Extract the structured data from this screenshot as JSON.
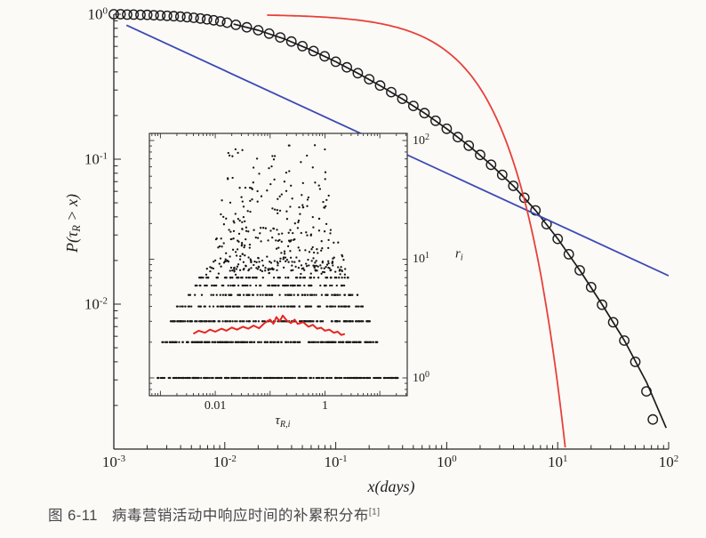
{
  "page": {
    "background": "#fbfaf7"
  },
  "caption": {
    "label": "图 6-11",
    "text": "病毒营销活动中响应时间的补累积分布",
    "ref": "[1]"
  },
  "chart_data": [
    {
      "name": "main-ccdf-plot",
      "type": "scatter",
      "xscale": "log",
      "yscale": "log",
      "xlabel": "x(days)",
      "ylabel": "P(τ_{R} > x)",
      "xlim": [
        0.001,
        100
      ],
      "ylim": [
        0.001,
        1
      ],
      "axis_color": "#242424",
      "xticks": [
        {
          "v": 0.001,
          "label": "10^{-3}"
        },
        {
          "v": 0.01,
          "label": "10^{-2}"
        },
        {
          "v": 0.1,
          "label": "10^{-1}"
        },
        {
          "v": 1,
          "label": "10^{0}"
        },
        {
          "v": 10,
          "label": "10^{1}"
        },
        {
          "v": 100,
          "label": "10^{2}"
        }
      ],
      "yticks": [
        {
          "v": 1,
          "label": "10^{0}"
        },
        {
          "v": 0.1,
          "label": "10^{-1}"
        },
        {
          "v": 0.01,
          "label": "10^{-2}"
        }
      ],
      "series": [
        {
          "name": "empirical-ccdf",
          "type": "scatter",
          "marker": "open-circle",
          "marker_radius": 5.2,
          "color": "#1b1b1b",
          "points": [
            [
              0.001,
              1.0
            ],
            [
              0.00115,
              1.0
            ],
            [
              0.00132,
              0.995
            ],
            [
              0.00151,
              0.995
            ],
            [
              0.00174,
              0.99
            ],
            [
              0.002,
              0.99
            ],
            [
              0.00229,
              0.985
            ],
            [
              0.00263,
              0.98
            ],
            [
              0.00302,
              0.975
            ],
            [
              0.00347,
              0.97
            ],
            [
              0.00398,
              0.962
            ],
            [
              0.00457,
              0.955
            ],
            [
              0.00525,
              0.945
            ],
            [
              0.00603,
              0.935
            ],
            [
              0.00692,
              0.922
            ],
            [
              0.00794,
              0.908
            ],
            [
              0.00912,
              0.893
            ],
            [
              0.0105,
              0.875
            ],
            [
              0.0126,
              0.845
            ],
            [
              0.0158,
              0.812
            ],
            [
              0.02,
              0.775
            ],
            [
              0.0251,
              0.735
            ],
            [
              0.0316,
              0.692
            ],
            [
              0.0398,
              0.648
            ],
            [
              0.0501,
              0.602
            ],
            [
              0.0631,
              0.557
            ],
            [
              0.0794,
              0.513
            ],
            [
              0.1,
              0.47
            ],
            [
              0.126,
              0.43
            ],
            [
              0.158,
              0.392
            ],
            [
              0.2,
              0.356
            ],
            [
              0.251,
              0.322
            ],
            [
              0.316,
              0.29
            ],
            [
              0.398,
              0.261
            ],
            [
              0.501,
              0.233
            ],
            [
              0.631,
              0.208
            ],
            [
              0.794,
              0.184
            ],
            [
              1.0,
              0.162
            ],
            [
              1.26,
              0.142
            ],
            [
              1.58,
              0.124
            ],
            [
              2.0,
              0.107
            ],
            [
              2.51,
              0.0915
            ],
            [
              3.16,
              0.078
            ],
            [
              3.98,
              0.0655
            ],
            [
              5.01,
              0.0542
            ],
            [
              6.31,
              0.0443
            ],
            [
              7.94,
              0.0356
            ],
            [
              10.0,
              0.0282
            ],
            [
              12.6,
              0.0221
            ],
            [
              15.8,
              0.0171
            ],
            [
              20.0,
              0.0131
            ],
            [
              25.1,
              0.0099
            ],
            [
              31.6,
              0.0075
            ],
            [
              39.8,
              0.0056
            ],
            [
              50.1,
              0.004
            ],
            [
              63.1,
              0.0025
            ],
            [
              72,
              0.0016
            ]
          ]
        },
        {
          "name": "lognormal-fit",
          "type": "line",
          "color": "#1b1b1b",
          "width": 1.7,
          "points": [
            [
              0.012,
              0.855
            ],
            [
              0.02,
              0.775
            ],
            [
              0.035,
              0.672
            ],
            [
              0.06,
              0.566
            ],
            [
              0.1,
              0.47
            ],
            [
              0.16,
              0.39
            ],
            [
              0.25,
              0.322
            ],
            [
              0.4,
              0.26
            ],
            [
              0.63,
              0.208
            ],
            [
              1.0,
              0.162
            ],
            [
              1.6,
              0.123
            ],
            [
              2.5,
              0.0917
            ],
            [
              4.0,
              0.0653
            ],
            [
              6.3,
              0.0444
            ],
            [
              10,
              0.0283
            ],
            [
              16,
              0.0169
            ],
            [
              25,
              0.01
            ],
            [
              40,
              0.0056
            ],
            [
              63,
              0.0029
            ],
            [
              95,
              0.0014
            ]
          ]
        },
        {
          "name": "power-law",
          "type": "line",
          "color": "#3c49b5",
          "width": 1.8,
          "points": [
            [
              0.0013,
              0.84
            ],
            [
              100,
              0.0157
            ]
          ]
        },
        {
          "name": "exponential",
          "type": "line",
          "color": "#e8403a",
          "width": 1.8,
          "formula": "exp",
          "tau": 1.7,
          "xrange": [
            0.024,
            11.7
          ]
        }
      ]
    },
    {
      "name": "inset-response-scatter",
      "type": "scatter",
      "xscale": "log",
      "yscale": "log",
      "xlabel": "τ_{R,i}",
      "ylabel_right": "r_{i}",
      "xlim": [
        0.00063,
        31.6
      ],
      "ylim": [
        0.708,
        114.8
      ],
      "frame_color": "#333333",
      "dot_color": "#161616",
      "seed": 42,
      "xticks": [
        {
          "v": 0.01,
          "label": "0.01"
        },
        {
          "v": 1,
          "label": "1"
        }
      ],
      "yticks": [
        {
          "v": 1,
          "label": "10^{0}"
        },
        {
          "v": 10,
          "label": "10^{1}"
        },
        {
          "v": 100,
          "label": "10^{2}"
        }
      ],
      "bands": [
        {
          "r": 1,
          "count": 300,
          "xmin": 0.0008,
          "xmax": 22
        },
        {
          "r": 2,
          "count": 230,
          "xmin": 0.001,
          "xmax": 9
        },
        {
          "r": 3,
          "count": 170,
          "xmin": 0.0015,
          "xmax": 7
        },
        {
          "r": 4,
          "count": 120,
          "xmin": 0.002,
          "xmax": 5
        },
        {
          "r": 5,
          "count": 95,
          "xmin": 0.003,
          "xmax": 4
        },
        {
          "r": 6,
          "count": 75,
          "xmin": 0.004,
          "xmax": 3.5
        },
        {
          "r": 7,
          "count": 60,
          "xmin": 0.005,
          "xmax": 3
        },
        {
          "r": 8,
          "count": 48,
          "xmin": 0.006,
          "xmax": 2.6
        },
        {
          "r": 9,
          "count": 38,
          "xmin": 0.007,
          "xmax": 2.4
        },
        {
          "r": 10,
          "count": 30,
          "xmin": 0.008,
          "xmax": 2.2
        },
        {
          "r": 12,
          "count": 24,
          "xmin": 0.009,
          "xmax": 2
        },
        {
          "r": 14,
          "count": 20,
          "xmin": 0.01,
          "xmax": 1.8
        },
        {
          "r": 17,
          "count": 16,
          "xmin": 0.012,
          "xmax": 1.6
        },
        {
          "r": 21,
          "count": 13,
          "xmin": 0.014,
          "xmax": 1.5
        },
        {
          "r": 26,
          "count": 10,
          "xmin": 0.016,
          "xmax": 1.4
        },
        {
          "r": 33,
          "count": 8,
          "xmin": 0.02,
          "xmax": 1.2
        },
        {
          "r": 42,
          "count": 6,
          "xmin": 0.025,
          "xmax": 1.0
        },
        {
          "r": 55,
          "count": 4,
          "xmin": 0.03,
          "xmax": 0.9
        },
        {
          "r": 75,
          "count": 3,
          "xmin": 0.04,
          "xmax": 0.7
        },
        {
          "r": 95,
          "count": 2,
          "xmin": 0.06,
          "xmax": 0.5
        }
      ],
      "sparse": {
        "count": 140,
        "r_min": 8,
        "r_max": 105,
        "x_center": 0.13,
        "x_spread_decades": 1.05,
        "x_min": 0.0035,
        "x_max": 2.8
      },
      "red_series": {
        "name": "running-average",
        "color": "#e8261f",
        "points": [
          [
            0.004,
            2.35
          ],
          [
            0.005,
            2.5
          ],
          [
            0.0065,
            2.4
          ],
          [
            0.008,
            2.55
          ],
          [
            0.01,
            2.45
          ],
          [
            0.013,
            2.6
          ],
          [
            0.016,
            2.5
          ],
          [
            0.02,
            2.66
          ],
          [
            0.025,
            2.55
          ],
          [
            0.032,
            2.7
          ],
          [
            0.04,
            2.6
          ],
          [
            0.05,
            2.76
          ],
          [
            0.063,
            2.62
          ],
          [
            0.079,
            2.9
          ],
          [
            0.1,
            3.1
          ],
          [
            0.115,
            2.86
          ],
          [
            0.13,
            3.25
          ],
          [
            0.15,
            3.0
          ],
          [
            0.17,
            3.35
          ],
          [
            0.2,
            3.05
          ],
          [
            0.24,
            2.9
          ],
          [
            0.28,
            3.1
          ],
          [
            0.32,
            2.85
          ],
          [
            0.4,
            2.95
          ],
          [
            0.5,
            2.7
          ],
          [
            0.6,
            2.8
          ],
          [
            0.72,
            2.6
          ],
          [
            0.85,
            2.65
          ],
          [
            1.0,
            2.5
          ],
          [
            1.2,
            2.55
          ],
          [
            1.45,
            2.4
          ],
          [
            1.7,
            2.45
          ],
          [
            2.0,
            2.3
          ],
          [
            2.3,
            2.35
          ]
        ]
      }
    }
  ]
}
